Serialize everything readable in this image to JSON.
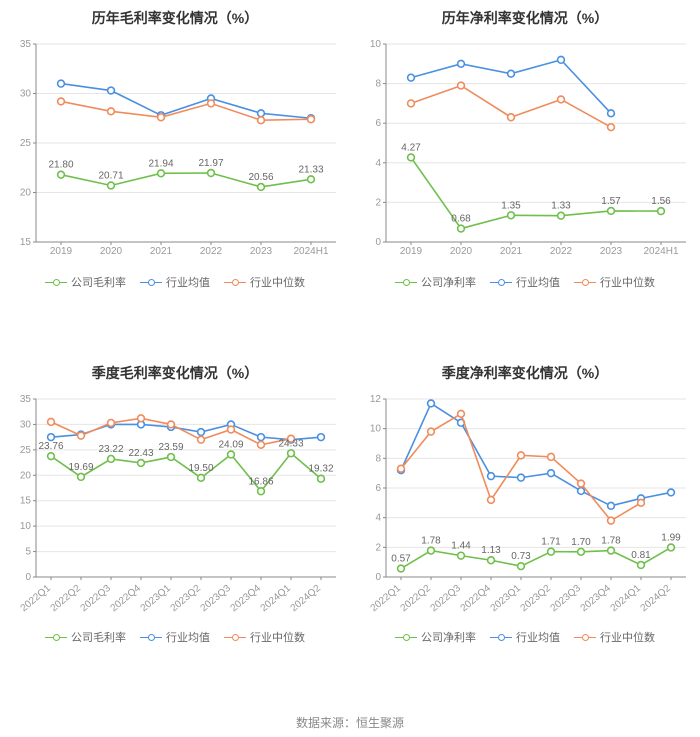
{
  "source_label": "数据来源：恒生聚源",
  "colors": {
    "company": "#6fbf4b",
    "industry_avg": "#4a90e2",
    "industry_median": "#f08b5b",
    "grid": "#e5e5e5",
    "axis": "#888888",
    "text": "#999999",
    "title": "#333333",
    "background": "#ffffff"
  },
  "typography": {
    "title_fontsize": 14,
    "axis_fontsize": 10,
    "label_fontsize": 10,
    "legend_fontsize": 11
  },
  "charts": [
    {
      "id": "annual_gross",
      "title": "历年毛利率变化情况（%）",
      "type": "line",
      "x_categories": [
        "2019",
        "2020",
        "2021",
        "2022",
        "2023",
        "2024H1"
      ],
      "x_rotate": 0,
      "ylim": [
        15,
        35
      ],
      "ytick_step": 5,
      "show_point_labels_series": "company",
      "series": [
        {
          "key": "company",
          "name": "公司毛利率",
          "color": "#6fbf4b",
          "values": [
            21.8,
            20.71,
            21.94,
            21.97,
            20.56,
            21.33
          ]
        },
        {
          "key": "industry_avg",
          "name": "行业均值",
          "color": "#4a90e2",
          "values": [
            31.0,
            30.3,
            27.8,
            29.5,
            28.0,
            27.5
          ]
        },
        {
          "key": "industry_median",
          "name": "行业中位数",
          "color": "#f08b5b",
          "values": [
            29.2,
            28.2,
            27.6,
            29.0,
            27.3,
            27.4
          ]
        }
      ],
      "legend": [
        "公司毛利率",
        "行业均值",
        "行业中位数"
      ]
    },
    {
      "id": "annual_net",
      "title": "历年净利率变化情况（%）",
      "type": "line",
      "x_categories": [
        "2019",
        "2020",
        "2021",
        "2022",
        "2023",
        "2024H1"
      ],
      "x_rotate": 0,
      "ylim": [
        0,
        10
      ],
      "ytick_step": 2,
      "show_point_labels_series": "company",
      "series": [
        {
          "key": "company",
          "name": "公司净利率",
          "color": "#6fbf4b",
          "values": [
            4.27,
            0.68,
            1.35,
            1.33,
            1.57,
            1.56
          ]
        },
        {
          "key": "industry_avg",
          "name": "行业均值",
          "color": "#4a90e2",
          "values": [
            8.3,
            9.0,
            8.5,
            9.2,
            6.5,
            null
          ]
        },
        {
          "key": "industry_median",
          "name": "行业中位数",
          "color": "#f08b5b",
          "values": [
            7.0,
            7.9,
            6.3,
            7.2,
            5.8,
            null
          ]
        }
      ],
      "legend": [
        "公司净利率",
        "行业均值",
        "行业中位数"
      ]
    },
    {
      "id": "quarter_gross",
      "title": "季度毛利率变化情况（%）",
      "type": "line",
      "x_categories": [
        "2022Q1",
        "2022Q2",
        "2022Q3",
        "2022Q4",
        "2023Q1",
        "2023Q2",
        "2023Q3",
        "2023Q4",
        "2024Q1",
        "2024Q2"
      ],
      "x_rotate": -40,
      "ylim": [
        0,
        35
      ],
      "ytick_step": 5,
      "show_point_labels_series": "company",
      "series": [
        {
          "key": "company",
          "name": "公司毛利率",
          "color": "#6fbf4b",
          "values": [
            23.76,
            19.69,
            23.22,
            22.43,
            23.59,
            19.5,
            24.09,
            16.86,
            24.33,
            19.32
          ]
        },
        {
          "key": "industry_avg",
          "name": "行业均值",
          "color": "#4a90e2",
          "values": [
            27.5,
            28.0,
            30.0,
            30.0,
            29.5,
            28.5,
            30.0,
            27.5,
            27.0,
            27.5
          ]
        },
        {
          "key": "industry_median",
          "name": "行业中位数",
          "color": "#f08b5b",
          "values": [
            30.5,
            27.8,
            30.3,
            31.2,
            30.0,
            27.0,
            29.0,
            26.0,
            27.2,
            null
          ]
        }
      ],
      "legend": [
        "公司毛利率",
        "行业均值",
        "行业中位数"
      ]
    },
    {
      "id": "quarter_net",
      "title": "季度净利率变化情况（%）",
      "type": "line",
      "x_categories": [
        "2022Q1",
        "2022Q2",
        "2022Q3",
        "2022Q4",
        "2023Q1",
        "2023Q2",
        "2023Q3",
        "2023Q4",
        "2024Q1",
        "2024Q2"
      ],
      "x_rotate": -40,
      "ylim": [
        0,
        12
      ],
      "ytick_step": 2,
      "show_point_labels_series": "company",
      "series": [
        {
          "key": "company",
          "name": "公司净利率",
          "color": "#6fbf4b",
          "values": [
            0.57,
            1.78,
            1.44,
            1.13,
            0.73,
            1.71,
            1.7,
            1.78,
            0.81,
            1.99
          ]
        },
        {
          "key": "industry_avg",
          "name": "行业均值",
          "color": "#4a90e2",
          "values": [
            7.2,
            11.7,
            10.4,
            6.8,
            6.7,
            7.0,
            5.8,
            4.8,
            5.3,
            5.7
          ]
        },
        {
          "key": "industry_median",
          "name": "行业中位数",
          "color": "#f08b5b",
          "values": [
            7.3,
            9.8,
            11.0,
            5.2,
            8.2,
            8.1,
            6.3,
            3.8,
            5.0,
            null
          ]
        }
      ],
      "legend": [
        "公司净利率",
        "行业均值",
        "行业中位数"
      ]
    }
  ]
}
